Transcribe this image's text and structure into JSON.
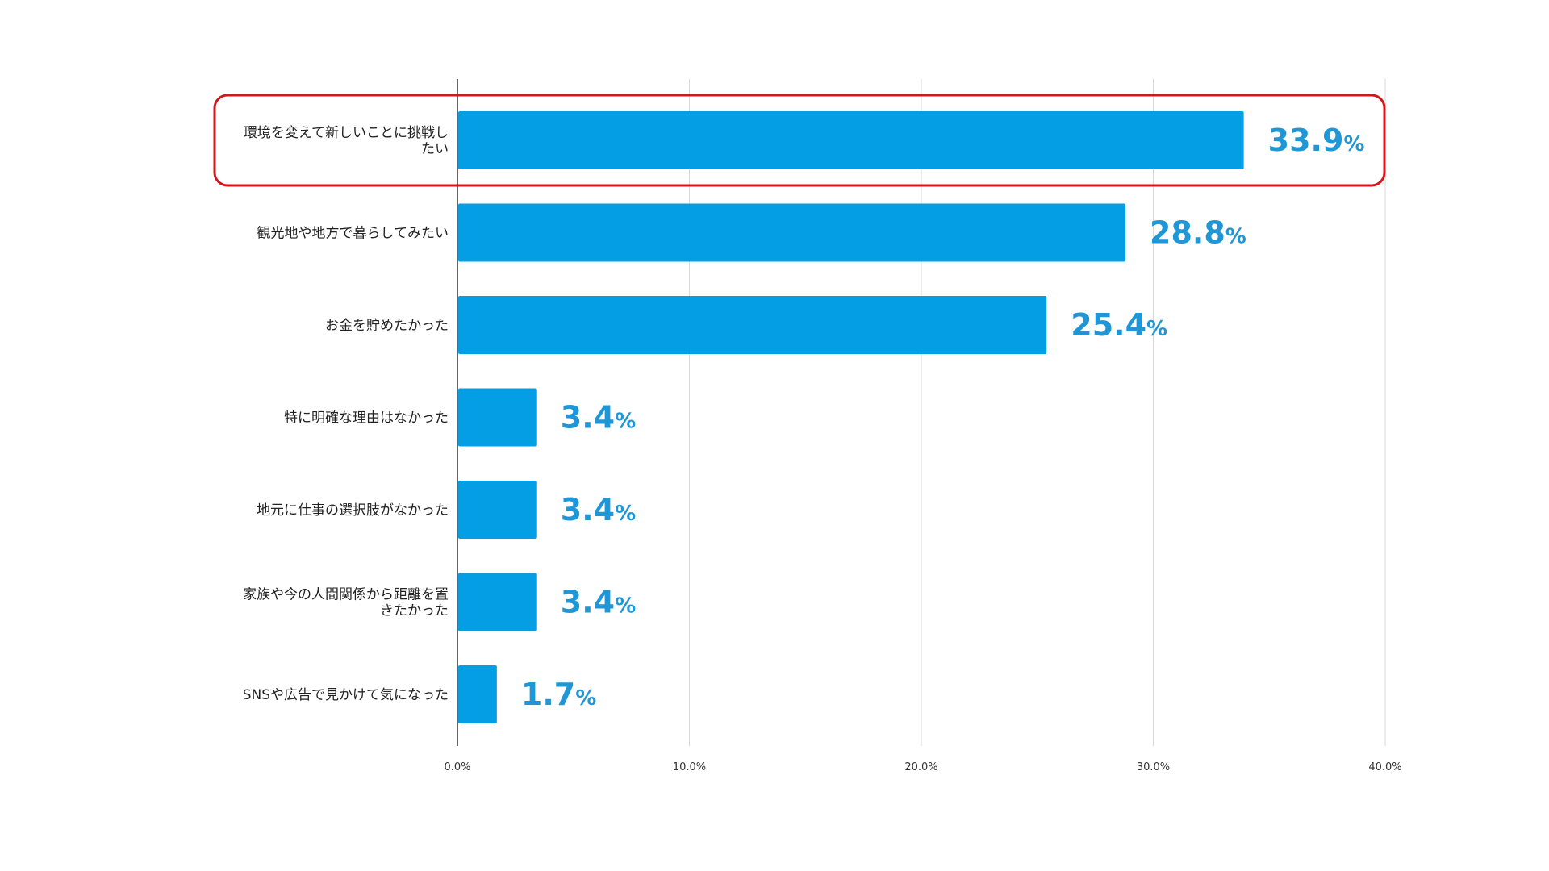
{
  "chart_data": {
    "type": "bar",
    "orientation": "horizontal",
    "categories": [
      [
        "環境を変えて新しいことに挑戦し",
        "たい"
      ],
      [
        "観光地や地方で暮らしてみたい"
      ],
      [
        "お金を貯めたかった"
      ],
      [
        "特に明確な理由はなかった"
      ],
      [
        "地元に仕事の選択肢がなかった"
      ],
      [
        "家族や今の人間関係から距離を置",
        "きたかった"
      ],
      [
        "SNSや広告で見かけて気になった"
      ]
    ],
    "values": [
      33.9,
      28.8,
      25.4,
      3.4,
      3.4,
      3.4,
      1.7
    ],
    "value_labels": [
      "33.9",
      "28.8",
      "25.4",
      "3.4",
      "3.4",
      "3.4",
      "1.7"
    ],
    "value_suffix": "%",
    "x_ticks": [
      "0.0%",
      "10.0%",
      "20.0%",
      "30.0%",
      "40.0%"
    ],
    "xlim": [
      0,
      40
    ],
    "grid": true,
    "highlight_index": 0
  },
  "colors": {
    "bar": "#039ee3",
    "value_label": "#1f96d6",
    "highlight_border": "#d6151b",
    "grid": "#d9d9d9",
    "axis": "#333333"
  }
}
